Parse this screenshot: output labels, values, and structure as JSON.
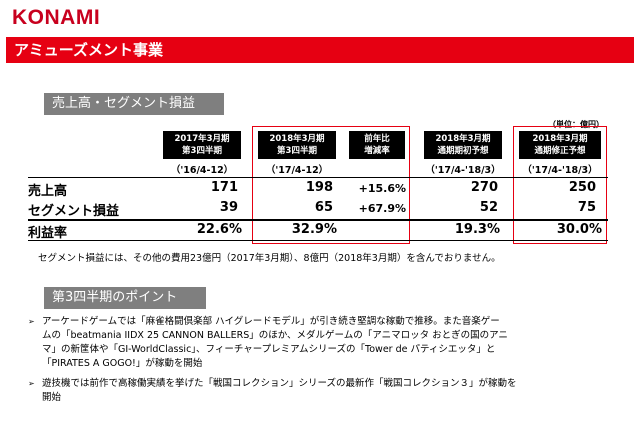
{
  "header": {
    "logo": "KONAMI",
    "title": "アミューズメント事業"
  },
  "section1": {
    "title": "売上高・セグメント損益",
    "unit": "（単位：億円）",
    "columns": [
      {
        "line1": "2017年3月期",
        "line2": "第3四半期",
        "period": "（'16/4-12）"
      },
      {
        "line1": "2018年3月期",
        "line2": "第3四半期",
        "period": "（'17/4-12）"
      },
      {
        "line1": "前年比",
        "line2": "増減率",
        "period": ""
      },
      {
        "line1": "2018年3月期",
        "line2": "通期期初予想",
        "period": "（'17/4-'18/3）"
      },
      {
        "line1": "2018年3月期",
        "line2": "通期修正予想",
        "period": "（'17/4-'18/3）"
      }
    ],
    "rows": [
      {
        "label": "売上高",
        "values": [
          "171",
          "198",
          "+15.6%",
          "270",
          "250"
        ]
      },
      {
        "label": "セグメント損益",
        "values": [
          "39",
          "65",
          "+67.9%",
          "52",
          "75"
        ]
      },
      {
        "label": "利益率",
        "values": [
          "22.6%",
          "32.9%",
          "",
          "19.3%",
          "30.0%"
        ]
      }
    ],
    "note": "セグメント損益には、その他の費用23億円（2017年3月期）、8億円（2018年3月期）を含んでおりません。"
  },
  "section2": {
    "title": "第3四半期のポイント",
    "bullets": [
      {
        "mark": "➢",
        "lines": [
          "アーケードゲームでは「麻雀格闘倶楽部 ハイグレードモデル」が引き続き堅調な稼動で推移。また音楽ゲー",
          "ムの「beatmania IIDX 25 CANNON BALLERS」のほか、メダルゲームの「アニマロッタ おとぎの国のアニ",
          "マ」の新筐体や「GI-WorldClassic」、フィーチャープレミアムシリーズの「Tower de パティシエッタ」と",
          "「PIRATES A GOGO!」が稼動を開始"
        ]
      },
      {
        "mark": "➢",
        "lines": [
          "遊技機では前作で高稼働実績を挙げた「戦国コレクション」シリーズの最新作「戦国コレクション３」が稼動を",
          "開始"
        ]
      }
    ]
  }
}
